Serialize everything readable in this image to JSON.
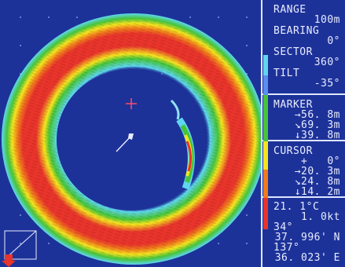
{
  "settings": {
    "range_label": "RANGE",
    "range_value": "100m",
    "bearing_label": "BEARING",
    "bearing_value": "0°",
    "sector_label": "SECTOR",
    "sector_value": "360°",
    "tilt_label": "TILT",
    "tilt_value": "-35°"
  },
  "marker": {
    "label": "MARKER",
    "horizontal": "→56. 8m",
    "slant": "↘69. 3m",
    "depth": "↓39. 8m"
  },
  "cursor": {
    "label": "CURSOR",
    "bearing": "+   0°",
    "horizontal": "→20. 3m",
    "slant": "↘24. 8m",
    "depth": "↓14. 2m"
  },
  "nav": {
    "temperature": "21. 1°C",
    "speed": "1. 0kt",
    "heading": "34°",
    "latitude": "37. 996' N",
    "longitude_deg": "137°",
    "longitude_min": "36. 023' E"
  },
  "colors": {
    "background": "#1d3299",
    "echo_scale": [
      "#e8342b",
      "#f07a1c",
      "#f5e41f",
      "#46c43a",
      "#5fd6f0",
      "#5a8ef0",
      "#1d3299"
    ]
  },
  "icons": {
    "ship_marker": "ship-icon",
    "cursor_cross": "crosshair-icon",
    "bearing_indicator": "arrow-down-icon"
  }
}
